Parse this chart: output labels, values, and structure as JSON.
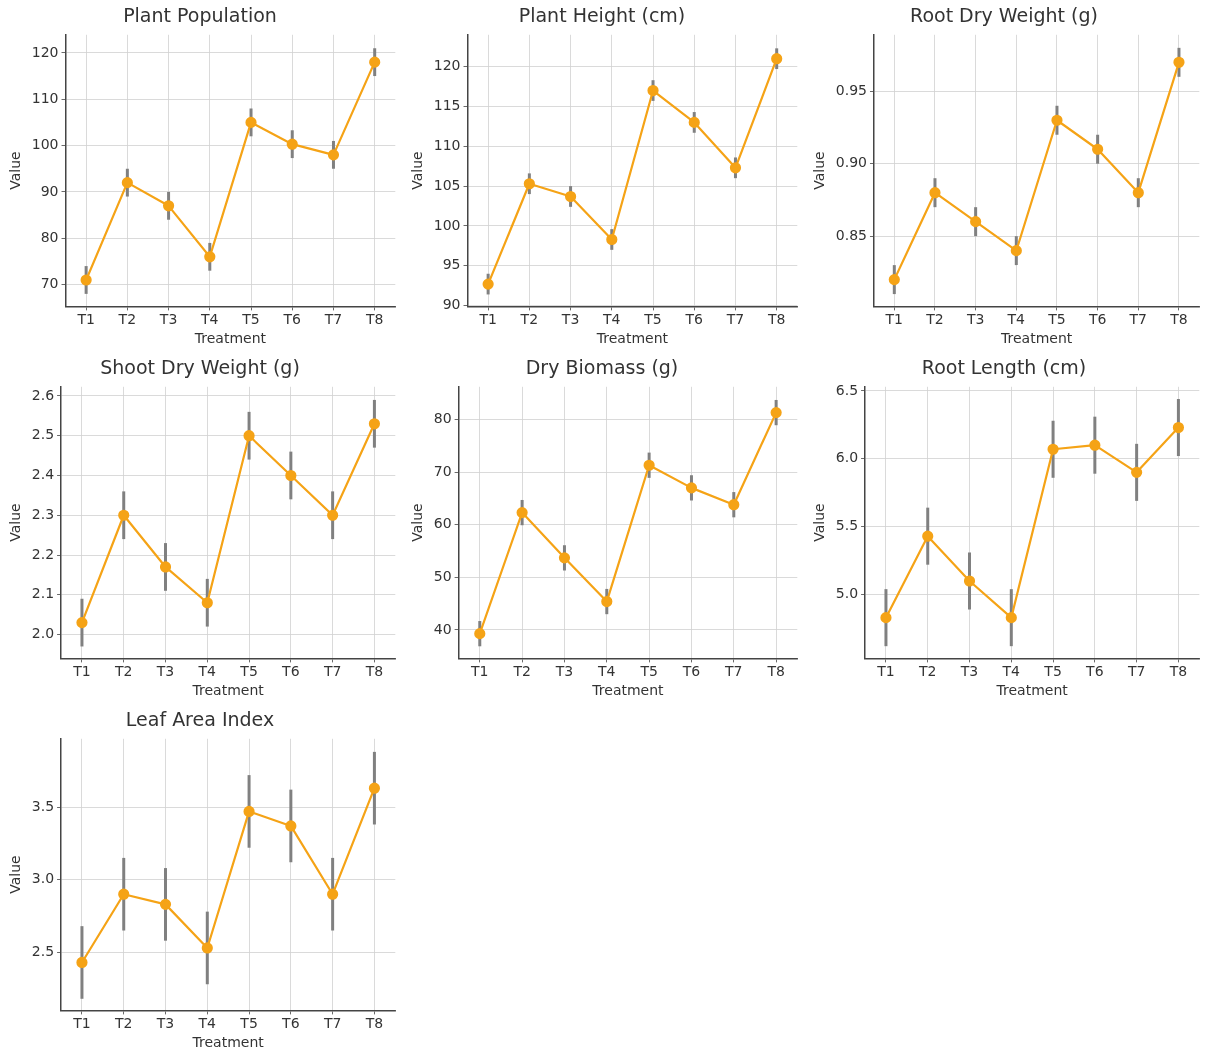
{
  "chart_data": [
    {
      "type": "line",
      "title": "Plant Population",
      "xlabel": "Treatment",
      "ylabel": "Value",
      "categories": [
        "T1",
        "T2",
        "T3",
        "T4",
        "T5",
        "T6",
        "T7",
        "T8"
      ],
      "values": [
        71,
        92,
        87,
        76,
        105,
        100.3,
        98,
        118
      ],
      "errors": [
        3,
        3,
        3,
        3,
        3,
        3,
        3,
        3
      ],
      "color": "#f5a316",
      "marker": "circle",
      "grid": true,
      "ylim": [
        65.3,
        123.9
      ],
      "yticks": [
        70,
        80,
        90,
        100,
        110,
        120
      ]
    },
    {
      "type": "line",
      "title": "Plant Height (cm)",
      "xlabel": "Treatment",
      "ylabel": "Value",
      "categories": [
        "T1",
        "T2",
        "T3",
        "T4",
        "T5",
        "T6",
        "T7",
        "T8"
      ],
      "values": [
        92.7,
        105.3,
        103.7,
        98.3,
        117,
        113,
        107.3,
        121
      ],
      "errors": [
        1.3,
        1.3,
        1.3,
        1.3,
        1.3,
        1.3,
        1.3,
        1.3
      ],
      "color": "#f5a316",
      "marker": "circle",
      "grid": true,
      "ylim": [
        89.9,
        124
      ],
      "yticks": [
        90,
        95,
        100,
        105,
        110,
        115,
        120
      ]
    },
    {
      "type": "line",
      "title": "Root Dry Weight (g)",
      "xlabel": "Treatment",
      "ylabel": "Value",
      "categories": [
        "T1",
        "T2",
        "T3",
        "T4",
        "T5",
        "T6",
        "T7",
        "T8"
      ],
      "values": [
        0.82,
        0.88,
        0.86,
        0.84,
        0.93,
        0.91,
        0.88,
        0.97
      ],
      "errors": [
        0.01,
        0.01,
        0.01,
        0.01,
        0.01,
        0.01,
        0.01,
        0.01
      ],
      "color": "#f5a316",
      "marker": "circle",
      "grid": true,
      "ylim": [
        0.8015,
        0.989
      ],
      "yticks": [
        0.85,
        {
          "value": 0.9,
          "label": "0.90"
        },
        0.95
      ]
    },
    {
      "type": "line",
      "title": "Shoot Dry Weight (g)",
      "xlabel": "Treatment",
      "ylabel": "Value",
      "categories": [
        "T1",
        "T2",
        "T3",
        "T4",
        "T5",
        "T6",
        "T7",
        "T8"
      ],
      "values": [
        2.03,
        2.3,
        2.17,
        2.08,
        2.5,
        2.4,
        2.3,
        2.53
      ],
      "errors": [
        0.06,
        0.06,
        0.06,
        0.06,
        0.06,
        0.06,
        0.06,
        0.06
      ],
      "color": "#f5a316",
      "marker": "circle",
      "grid": true,
      "ylim": [
        1.94,
        2.623
      ],
      "yticks": [
        {
          "value": 2,
          "label": "2.0"
        },
        2.1,
        2.2,
        2.3,
        2.4,
        2.5,
        2.6
      ]
    },
    {
      "type": "line",
      "title": "Dry Biomass (g)",
      "xlabel": "Treatment",
      "ylabel": "Value",
      "categories": [
        "T1",
        "T2",
        "T3",
        "T4",
        "T5",
        "T6",
        "T7",
        "T8"
      ],
      "values": [
        39.3,
        62.3,
        53.7,
        45.4,
        71.3,
        67,
        63.8,
        81.3
      ],
      "errors": [
        2.4,
        2.4,
        2.4,
        2.4,
        2.4,
        2.4,
        2.4,
        2.4
      ],
      "color": "#f5a316",
      "marker": "circle",
      "grid": true,
      "ylim": [
        34.6,
        86.2
      ],
      "yticks": [
        40,
        50,
        60,
        70,
        80
      ]
    },
    {
      "type": "line",
      "title": "Root Length (cm)",
      "xlabel": "Treatment",
      "ylabel": "Value",
      "categories": [
        "T1",
        "T2",
        "T3",
        "T4",
        "T5",
        "T6",
        "T7",
        "T8"
      ],
      "values": [
        4.83,
        5.43,
        5.1,
        4.83,
        6.07,
        6.1,
        5.9,
        6.23
      ],
      "errors": [
        0.21,
        0.21,
        0.21,
        0.21,
        0.21,
        0.21,
        0.21,
        0.21
      ],
      "color": "#f5a316",
      "marker": "circle",
      "grid": true,
      "ylim": [
        4.53,
        6.53
      ],
      "yticks": [
        {
          "value": 5,
          "label": "5.0"
        },
        5.5,
        {
          "value": 6,
          "label": "6.0"
        },
        6.5
      ]
    },
    {
      "type": "line",
      "title": "Leaf Area Index",
      "xlabel": "Treatment",
      "ylabel": "Value",
      "categories": [
        "T1",
        "T2",
        "T3",
        "T4",
        "T5",
        "T6",
        "T7",
        "T8"
      ],
      "values": [
        2.43,
        2.9,
        2.83,
        2.53,
        3.47,
        3.37,
        2.9,
        3.63
      ],
      "errors": [
        0.25,
        0.25,
        0.25,
        0.25,
        0.25,
        0.25,
        0.25,
        0.25
      ],
      "color": "#f5a316",
      "marker": "circle",
      "grid": true,
      "ylim": [
        2.1,
        3.97
      ],
      "yticks": [
        2.5,
        {
          "value": 3,
          "label": "3.0"
        },
        3.5
      ]
    }
  ]
}
